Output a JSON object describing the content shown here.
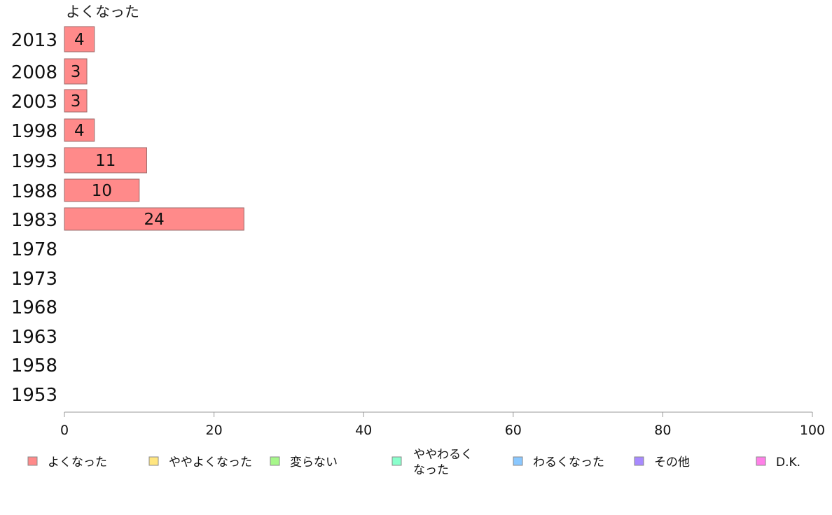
{
  "chart_data": {
    "type": "bar",
    "orientation": "horizontal",
    "series_title": "よくなった",
    "categories": [
      "2013",
      "2008",
      "2003",
      "1998",
      "1993",
      "1988",
      "1983",
      "1978",
      "1973",
      "1968",
      "1963",
      "1958",
      "1953"
    ],
    "series": [
      {
        "name": "よくなった",
        "color": "#ff8a8a",
        "values": [
          4,
          3,
          3,
          4,
          11,
          10,
          24,
          null,
          null,
          null,
          null,
          null,
          null
        ],
        "labels": [
          "4",
          "3",
          "3",
          "4",
          "11",
          "10",
          "24",
          "",
          "",
          "",
          "",
          "",
          ""
        ]
      }
    ],
    "xlim": [
      0,
      100
    ],
    "xticks": [
      "0",
      "20",
      "40",
      "60",
      "80",
      "100"
    ],
    "grid": false,
    "legend_position": "bottom",
    "legend": [
      {
        "lines": [
          "よくなった"
        ],
        "color": "#ff8a8a"
      },
      {
        "lines": [
          "ややよくなった"
        ],
        "color": "#ffe680"
      },
      {
        "lines": [
          "変らない"
        ],
        "color": "#a6f78a"
      },
      {
        "lines": [
          "ややわるく",
          "なった"
        ],
        "color": "#8affcc"
      },
      {
        "lines": [
          "わるくなった"
        ],
        "color": "#8ac8ff"
      },
      {
        "lines": [
          "その他"
        ],
        "color": "#a88aff"
      },
      {
        "lines": [
          "D.K."
        ],
        "color": "#ff80e8"
      }
    ]
  }
}
